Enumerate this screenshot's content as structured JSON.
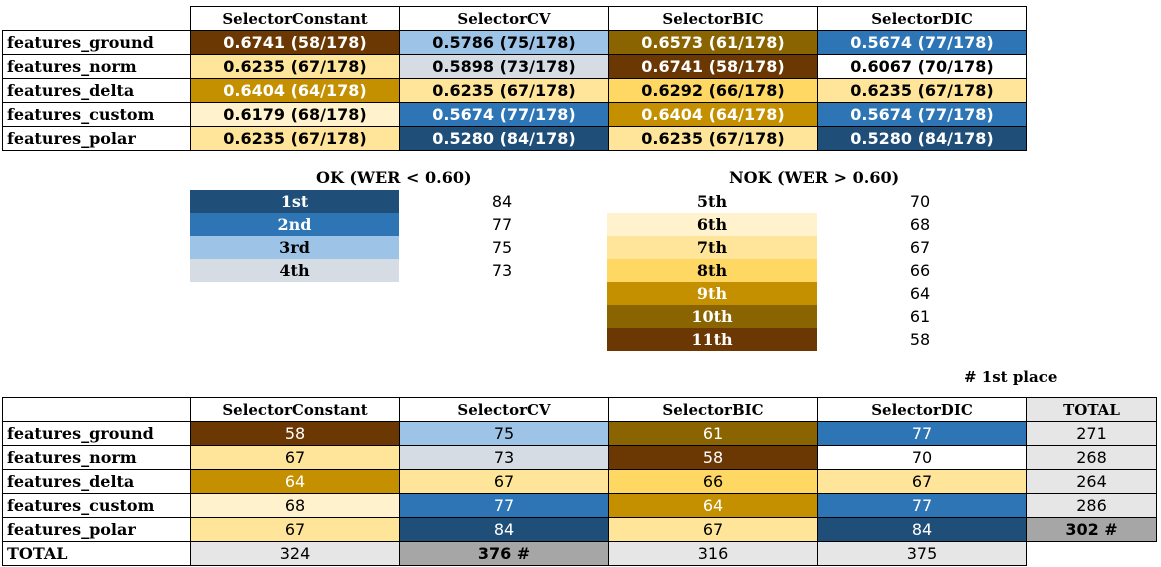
{
  "colors": {
    "c58": "#6b3703",
    "c61": "#8a6400",
    "c64": "#c49000",
    "c66": "#ffd763",
    "c67": "#ffe59a",
    "c68": "#fff2cc",
    "c70": "#ffffff",
    "c73": "#d6dce4",
    "c75": "#9dc3e6",
    "c77": "#2e75b6",
    "c84": "#1f4e79",
    "total_gray": "#e7e6e6",
    "total_best": "#a6a6a6"
  },
  "table1": {
    "headers": [
      "SelectorConstant",
      "SelectorCV",
      "SelectorBIC",
      "SelectorDIC"
    ],
    "rows": [
      {
        "label": "features_ground",
        "cells": [
          {
            "text": "0.6741 (58/178)",
            "cls": "c58"
          },
          {
            "text": "0.5786 (75/178)",
            "cls": "c75"
          },
          {
            "text": "0.6573 (61/178)",
            "cls": "c61"
          },
          {
            "text": "0.5674 (77/178)",
            "cls": "c77"
          }
        ]
      },
      {
        "label": "features_norm",
        "cells": [
          {
            "text": "0.6235 (67/178)",
            "cls": "c67"
          },
          {
            "text": "0.5898 (73/178)",
            "cls": "c73"
          },
          {
            "text": "0.6741 (58/178)",
            "cls": "c58"
          },
          {
            "text": "0.6067 (70/178)",
            "cls": "c70"
          }
        ]
      },
      {
        "label": "features_delta",
        "cells": [
          {
            "text": "0.6404 (64/178)",
            "cls": "c64"
          },
          {
            "text": "0.6235 (67/178)",
            "cls": "c67"
          },
          {
            "text": "0.6292 (66/178)",
            "cls": "c66"
          },
          {
            "text": "0.6235 (67/178)",
            "cls": "c67"
          }
        ]
      },
      {
        "label": "features_custom",
        "cells": [
          {
            "text": "0.6179 (68/178)",
            "cls": "c68"
          },
          {
            "text": "0.5674 (77/178)",
            "cls": "c77"
          },
          {
            "text": "0.6404 (64/178)",
            "cls": "c64"
          },
          {
            "text": "0.5674 (77/178)",
            "cls": "c77"
          }
        ]
      },
      {
        "label": "features_polar",
        "cells": [
          {
            "text": "0.6235 (67/178)",
            "cls": "c67"
          },
          {
            "text": "0.5280 (84/178)",
            "cls": "c84"
          },
          {
            "text": "0.6235 (67/178)",
            "cls": "c67"
          },
          {
            "text": "0.5280 (84/178)",
            "cls": "c84"
          }
        ]
      }
    ]
  },
  "legend_ok": {
    "title": "OK  (WER < 0.60)",
    "items": [
      {
        "rank": "1st",
        "count": "84",
        "cls": "c84"
      },
      {
        "rank": "2nd",
        "count": "77",
        "cls": "c77"
      },
      {
        "rank": "3rd",
        "count": "75",
        "cls": "c75"
      },
      {
        "rank": "4th",
        "count": "73",
        "cls": "c73"
      }
    ]
  },
  "legend_nok": {
    "title": "NOK  (WER > 0.60)",
    "items": [
      {
        "rank": "5th",
        "count": "70",
        "cls": "c70"
      },
      {
        "rank": "6th",
        "count": "68",
        "cls": "c68"
      },
      {
        "rank": "7th",
        "count": "67",
        "cls": "c67"
      },
      {
        "rank": "8th",
        "count": "66",
        "cls": "c66"
      },
      {
        "rank": "9th",
        "count": "64",
        "cls": "c64"
      },
      {
        "rank": "10th",
        "count": "61",
        "cls": "c61"
      },
      {
        "rank": "11th",
        "count": "58",
        "cls": "c58"
      }
    ]
  },
  "note": "# 1st place",
  "table2": {
    "headers": [
      "SelectorConstant",
      "SelectorCV",
      "SelectorBIC",
      "SelectorDIC",
      "TOTAL"
    ],
    "rows": [
      {
        "label": "features_ground",
        "cells": [
          {
            "text": "58",
            "cls": "c58"
          },
          {
            "text": "75",
            "cls": "c75"
          },
          {
            "text": "61",
            "cls": "c61"
          },
          {
            "text": "77",
            "cls": "c77"
          },
          {
            "text": "271",
            "cls": "total_gray"
          }
        ]
      },
      {
        "label": "features_norm",
        "cells": [
          {
            "text": "67",
            "cls": "c67"
          },
          {
            "text": "73",
            "cls": "c73"
          },
          {
            "text": "58",
            "cls": "c58"
          },
          {
            "text": "70",
            "cls": "c70"
          },
          {
            "text": "268",
            "cls": "total_gray"
          }
        ]
      },
      {
        "label": "features_delta",
        "cells": [
          {
            "text": "64",
            "cls": "c64"
          },
          {
            "text": "67",
            "cls": "c67"
          },
          {
            "text": "66",
            "cls": "c66"
          },
          {
            "text": "67",
            "cls": "c67"
          },
          {
            "text": "264",
            "cls": "total_gray"
          }
        ]
      },
      {
        "label": "features_custom",
        "cells": [
          {
            "text": "68",
            "cls": "c68"
          },
          {
            "text": "77",
            "cls": "c77"
          },
          {
            "text": "64",
            "cls": "c64"
          },
          {
            "text": "77",
            "cls": "c77"
          },
          {
            "text": "286",
            "cls": "total_gray"
          }
        ]
      },
      {
        "label": "features_polar",
        "cells": [
          {
            "text": "67",
            "cls": "c67"
          },
          {
            "text": "84",
            "cls": "c84"
          },
          {
            "text": "67",
            "cls": "c67"
          },
          {
            "text": "84",
            "cls": "c84"
          },
          {
            "text": "302 #",
            "cls": "total_best"
          }
        ]
      }
    ],
    "total_row": {
      "label": "TOTAL",
      "cells": [
        {
          "text": "324",
          "cls": "total_gray"
        },
        {
          "text": "376 #",
          "cls": "total_best"
        },
        {
          "text": "316",
          "cls": "total_gray"
        },
        {
          "text": "375",
          "cls": "total_gray"
        }
      ]
    }
  }
}
